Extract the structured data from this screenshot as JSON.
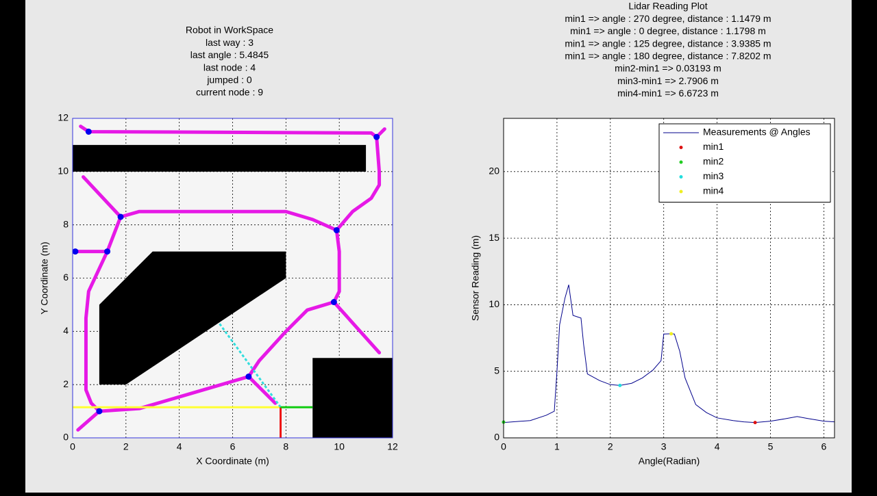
{
  "chart_data": [
    {
      "type": "map",
      "title": [
        "Robot in WorkSpace",
        "last way : 3",
        "last angle : 5.4845",
        "last node : 4",
        "jumped : 0",
        "current node : 9"
      ],
      "xlabel": "X Coordinate (m)",
      "ylabel": "Y Coordinate (m)",
      "xlim": [
        0,
        12
      ],
      "ylim": [
        0,
        12
      ],
      "xticks": [
        0,
        2,
        4,
        6,
        8,
        10,
        12
      ],
      "yticks": [
        0,
        2,
        4,
        6,
        8,
        10,
        12
      ],
      "grid": true,
      "obstacles": [
        {
          "color": "#000000",
          "x": [
            0,
            11,
            11,
            0
          ],
          "y": [
            10,
            10,
            11,
            11
          ]
        },
        {
          "color": "#000000",
          "x": [
            1,
            1,
            3,
            8,
            8,
            2
          ],
          "y": [
            2,
            5,
            7,
            7,
            6,
            2
          ]
        },
        {
          "color": "#000000",
          "x": [
            9,
            12,
            12,
            9
          ],
          "y": [
            0,
            0,
            3,
            3
          ]
        }
      ],
      "paths": [
        {
          "color": "#e619e6",
          "x": [
            0.3,
            0.6,
            11.2,
            11.4,
            11.7
          ],
          "y": [
            11.7,
            11.5,
            11.45,
            11.3,
            11.6
          ]
        },
        {
          "color": "#e619e6",
          "x": [
            11.4,
            11.5,
            11.5,
            11.2,
            10.5,
            9.9
          ],
          "y": [
            11.3,
            10,
            9.5,
            9,
            8.5,
            7.8
          ]
        },
        {
          "color": "#e619e6",
          "x": [
            0.4,
            1.8,
            2.5,
            8,
            9,
            9.9,
            10,
            10,
            9.8,
            11.5
          ],
          "y": [
            9.8,
            8.3,
            8.5,
            8.5,
            8.2,
            7.8,
            7,
            5.5,
            5.1,
            3.2
          ]
        },
        {
          "color": "#e619e6",
          "x": [
            0.1,
            1.3
          ],
          "y": [
            7,
            7
          ]
        },
        {
          "color": "#e619e6",
          "x": [
            1.8,
            1.3,
            0.6,
            0.5,
            0.5,
            0.7,
            1,
            0.2
          ],
          "y": [
            8.3,
            7,
            5.5,
            4.5,
            1.8,
            1.3,
            1,
            0.3
          ]
        },
        {
          "color": "#e619e6",
          "x": [
            1,
            2.5,
            6.6
          ],
          "y": [
            1,
            1.1,
            2.3
          ]
        },
        {
          "color": "#e619e6",
          "x": [
            9.8,
            8.8,
            8,
            7,
            6.6,
            7.6
          ],
          "y": [
            5.1,
            4.8,
            4,
            2.9,
            2.3,
            1.3
          ]
        }
      ],
      "rays": [
        {
          "color": "#ffff33",
          "x": [
            0,
            7.8
          ],
          "y": [
            1.15,
            1.15
          ]
        },
        {
          "color": "#33dddd",
          "x": [
            7.8,
            5.5
          ],
          "y": [
            1.15,
            4.3
          ]
        },
        {
          "color": "#ee1111",
          "x": [
            7.8,
            7.8
          ],
          "y": [
            1.15,
            0
          ]
        },
        {
          "color": "#11cc11",
          "x": [
            7.8,
            9
          ],
          "y": [
            1.15,
            1.15
          ]
        }
      ],
      "nodes": {
        "color": "#0000ee",
        "x": [
          0.6,
          11.4,
          1.8,
          9.9,
          0.1,
          1.3,
          9.8,
          6.6,
          1
        ],
        "y": [
          11.5,
          11.3,
          8.3,
          7.8,
          7,
          7,
          5.1,
          2.3,
          1
        ]
      }
    },
    {
      "type": "line",
      "title": [
        "Lidar Reading Plot",
        "min1 => angle : 270 degree, distance : 1.1479 m",
        "min1 => angle : 0 degree, distance : 1.1798 m",
        "min1 => angle : 125 degree, distance : 3.9385 m",
        "min1 => angle : 180 degree, distance : 7.8202 m",
        "min2-min1 => 0.03193 m",
        "min3-min1 => 2.7906 m",
        "min4-min1 => 6.6723 m"
      ],
      "xlabel": "Angle(Radian)",
      "ylabel": "Sensor Reading (m)",
      "xlim": [
        0,
        6.2
      ],
      "ylim": [
        0,
        24
      ],
      "xticks": [
        0,
        1,
        2,
        3,
        4,
        5,
        6
      ],
      "yticks": [
        0,
        5,
        10,
        15,
        20
      ],
      "grid": true,
      "legend": "northeast",
      "series": [
        {
          "name": "Measurements @ Angles",
          "color": "#00008b",
          "marker": false,
          "x": [
            0,
            0.5,
            0.8,
            0.95,
            1.0,
            1.05,
            1.15,
            1.22,
            1.3,
            1.45,
            1.5,
            1.57,
            1.8,
            2.0,
            2.18,
            2.4,
            2.6,
            2.8,
            2.95,
            3.0,
            3.14,
            3.2,
            3.3,
            3.4,
            3.6,
            3.8,
            4.0,
            4.3,
            4.5,
            4.71,
            5.0,
            5.3,
            5.5,
            5.7,
            6.0,
            6.2
          ],
          "y": [
            1.15,
            1.3,
            1.7,
            2.0,
            5,
            8.5,
            10.5,
            11.5,
            9.2,
            9.0,
            7,
            4.8,
            4.3,
            4.0,
            3.94,
            4.1,
            4.5,
            5.1,
            5.8,
            7.8,
            7.82,
            7.8,
            6.5,
            4.5,
            2.5,
            1.9,
            1.5,
            1.3,
            1.2,
            1.15,
            1.25,
            1.45,
            1.6,
            1.45,
            1.25,
            1.2
          ]
        },
        {
          "name": "min1",
          "color": "#dd1111",
          "marker": true,
          "x": [
            4.712
          ],
          "y": [
            1.1479
          ]
        },
        {
          "name": "min2",
          "color": "#22cc22",
          "marker": true,
          "x": [
            0
          ],
          "y": [
            1.1798
          ]
        },
        {
          "name": "min3",
          "color": "#22dddd",
          "marker": true,
          "x": [
            2.18
          ],
          "y": [
            3.9385
          ]
        },
        {
          "name": "min4",
          "color": "#eeee22",
          "marker": true,
          "x": [
            3.14
          ],
          "y": [
            7.8202
          ]
        }
      ]
    }
  ]
}
